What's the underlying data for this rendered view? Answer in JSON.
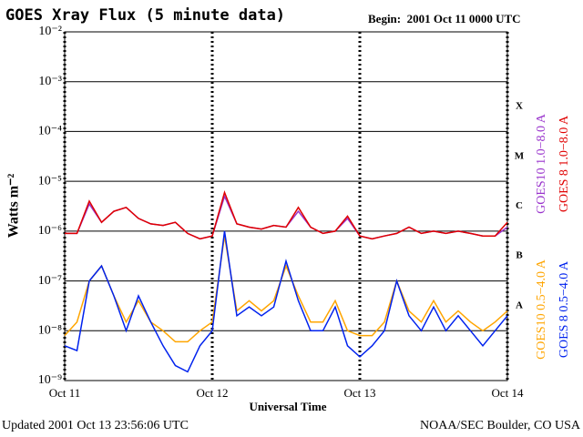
{
  "chart_data": {
    "type": "line",
    "title": "GOES Xray Flux (5 minute data)",
    "subtitle": "Begin:  2001 Oct 11 0000 UTC",
    "ylabel": "Watts m⁻²",
    "xlabel": "Universal Time",
    "footer_left": "Updated 2001 Oct 13 23:56:06 UTC",
    "footer_right": "NOAA/SEC Boulder, CO USA",
    "log_y": true,
    "grid": true,
    "ylim": [
      1e-09,
      0.01
    ],
    "yticks": [
      {
        "value": 1e-09,
        "label": "10⁻⁹"
      },
      {
        "value": 1e-08,
        "label": "10⁻⁸"
      },
      {
        "value": 1e-07,
        "label": "10⁻⁷"
      },
      {
        "value": 1e-06,
        "label": "10⁻⁶"
      },
      {
        "value": 1e-05,
        "label": "10⁻⁵"
      },
      {
        "value": 0.0001,
        "label": "10⁻⁴"
      },
      {
        "value": 0.001,
        "label": "10⁻³"
      },
      {
        "value": 0.01,
        "label": "10⁻²"
      }
    ],
    "xlim": [
      0,
      72
    ],
    "xticks": [
      {
        "value": 0,
        "label": "Oct 11"
      },
      {
        "value": 24,
        "label": "Oct 12"
      },
      {
        "value": 48,
        "label": "Oct 13"
      },
      {
        "value": 72,
        "label": "Oct 14"
      }
    ],
    "flare_classes": [
      {
        "label": "X",
        "value": 0.0001
      },
      {
        "label": "M",
        "value": 1e-05
      },
      {
        "label": "C",
        "value": 1e-06
      },
      {
        "label": "B",
        "value": 1e-07
      },
      {
        "label": "A",
        "value": 1e-08
      }
    ],
    "x": [
      0,
      2,
      4,
      6,
      8,
      10,
      12,
      14,
      16,
      18,
      20,
      22,
      24,
      26,
      28,
      30,
      32,
      34,
      36,
      38,
      40,
      42,
      44,
      46,
      48,
      50,
      52,
      54,
      56,
      58,
      60,
      62,
      64,
      66,
      68,
      70,
      72
    ],
    "series": [
      {
        "name": "GOES10 1.0−8.0 A",
        "color": "#9933cc",
        "values": [
          9e-07,
          9e-07,
          3.5e-06,
          1.5e-06,
          2.5e-06,
          3e-06,
          1.8e-06,
          1.4e-06,
          1.3e-06,
          1.5e-06,
          9e-07,
          7e-07,
          8e-07,
          5e-06,
          1.4e-06,
          1.2e-06,
          1.1e-06,
          1.3e-06,
          1.2e-06,
          2.5e-06,
          1.2e-06,
          9e-07,
          1e-06,
          1.8e-06,
          8e-07,
          7e-07,
          8e-07,
          9e-07,
          1.2e-06,
          9e-07,
          1e-06,
          9e-07,
          1e-06,
          9e-07,
          8e-07,
          8e-07,
          1.2e-06
        ]
      },
      {
        "name": "GOES 8 1.0−8.0 A",
        "color": "#e00000",
        "values": [
          9e-07,
          9e-07,
          4e-06,
          1.5e-06,
          2.5e-06,
          3e-06,
          1.8e-06,
          1.4e-06,
          1.3e-06,
          1.5e-06,
          9e-07,
          7e-07,
          8e-07,
          6e-06,
          1.4e-06,
          1.2e-06,
          1.1e-06,
          1.3e-06,
          1.2e-06,
          3e-06,
          1.2e-06,
          9e-07,
          1e-06,
          2e-06,
          8e-07,
          7e-07,
          8e-07,
          9e-07,
          1.2e-06,
          9e-07,
          1e-06,
          9e-07,
          1e-06,
          9e-07,
          8e-07,
          8e-07,
          1.5e-06
        ]
      },
      {
        "name": "GOES10 0.5−4.0 A",
        "color": "#ffa500",
        "values": [
          8e-09,
          1.5e-08,
          1e-07,
          2e-07,
          5e-08,
          1.5e-08,
          4e-08,
          1.5e-08,
          1e-08,
          6e-09,
          6e-09,
          1e-08,
          1.5e-08,
          8e-07,
          2.5e-08,
          4e-08,
          2.5e-08,
          4e-08,
          2e-07,
          5e-08,
          1.5e-08,
          1.5e-08,
          4e-08,
          1e-08,
          8e-09,
          8e-09,
          1.5e-08,
          1e-07,
          2.5e-08,
          1.5e-08,
          4e-08,
          1.5e-08,
          2.5e-08,
          1.5e-08,
          1e-08,
          1.5e-08,
          2.5e-08
        ]
      },
      {
        "name": "GOES 8 0.5−4.0 A",
        "color": "#0022ee",
        "values": [
          5e-09,
          4e-09,
          1e-07,
          2e-07,
          5e-08,
          1e-08,
          5e-08,
          1.5e-08,
          5e-09,
          2e-09,
          1.5e-09,
          5e-09,
          1e-08,
          1e-06,
          2e-08,
          3e-08,
          2e-08,
          3e-08,
          2.5e-07,
          4e-08,
          1e-08,
          1e-08,
          3e-08,
          5e-09,
          3e-09,
          5e-09,
          1e-08,
          1e-07,
          2e-08,
          1e-08,
          3e-08,
          1e-08,
          2e-08,
          1e-08,
          5e-09,
          1e-08,
          2e-08
        ]
      }
    ]
  }
}
